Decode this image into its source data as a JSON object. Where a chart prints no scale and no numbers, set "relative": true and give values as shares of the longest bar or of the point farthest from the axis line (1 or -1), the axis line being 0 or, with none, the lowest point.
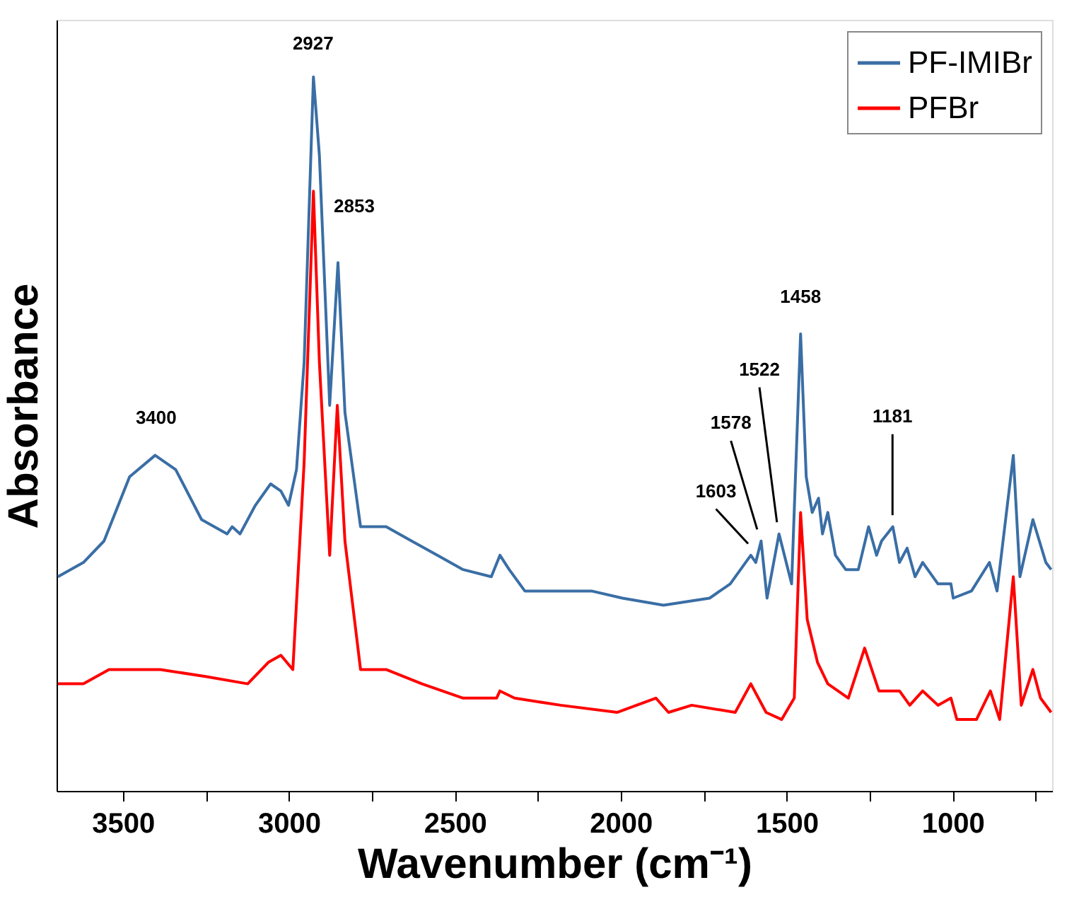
{
  "chart_data": {
    "type": "line",
    "xlabel": "Wavenumber (cm⁻¹)",
    "ylabel": "Absorbance",
    "relative": true,
    "xlim": [
      3700,
      700
    ],
    "xticks": [
      3500,
      {
        "value": 3250,
        "label": null
      },
      3000,
      {
        "value": 2750,
        "label": null
      },
      2500,
      {
        "value": 2250,
        "label": null
      },
      2000,
      {
        "value": 1750,
        "label": null
      },
      1500,
      {
        "value": 1250,
        "label": null
      },
      1000,
      {
        "value": 750,
        "label": null
      }
    ],
    "grid": false,
    "legend": "top right",
    "marker": "none",
    "line_style": "solid",
    "series": [
      {
        "name": "PF-IMIBr",
        "color": "#3a6ea5",
        "x": [
          3696,
          3619,
          3557,
          3480,
          3403,
          3341,
          3263,
          3186,
          3171,
          3147,
          3101,
          3055,
          3024,
          3001,
          2977,
          2954,
          2926,
          2908,
          2877,
          2852,
          2831,
          2784,
          2707,
          2630,
          2552,
          2475,
          2390,
          2364,
          2336,
          2289,
          2242,
          2088,
          1995,
          1871,
          1732,
          1670,
          1608,
          1593,
          1577,
          1559,
          1523,
          1485,
          1458,
          1441,
          1423,
          1404,
          1392,
          1376,
          1353,
          1322,
          1284,
          1253,
          1229,
          1214,
          1180,
          1160,
          1137,
          1113,
          1090,
          1044,
          1005,
          998,
          943,
          889,
          866,
          817,
          797,
          758,
          719,
          703
        ],
        "values": [
          0.3,
          0.32,
          0.35,
          0.44,
          0.47,
          0.45,
          0.38,
          0.36,
          0.37,
          0.36,
          0.4,
          0.43,
          0.42,
          0.4,
          0.45,
          0.6,
          1.0,
          0.89,
          0.54,
          0.74,
          0.53,
          0.37,
          0.37,
          0.35,
          0.33,
          0.31,
          0.3,
          0.33,
          0.31,
          0.28,
          0.28,
          0.28,
          0.27,
          0.26,
          0.27,
          0.29,
          0.33,
          0.32,
          0.35,
          0.27,
          0.36,
          0.29,
          0.64,
          0.44,
          0.39,
          0.41,
          0.36,
          0.39,
          0.33,
          0.31,
          0.31,
          0.37,
          0.33,
          0.35,
          0.37,
          0.32,
          0.34,
          0.3,
          0.32,
          0.29,
          0.29,
          0.27,
          0.28,
          0.32,
          0.28,
          0.47,
          0.3,
          0.38,
          0.32,
          0.31
        ]
      },
      {
        "name": "PFBr",
        "color": "#ff0000",
        "x": [
          3696,
          3619,
          3542,
          3480,
          3387,
          3248,
          3124,
          3062,
          3024,
          2988,
          2954,
          2926,
          2908,
          2877,
          2854,
          2831,
          2784,
          2707,
          2599,
          2475,
          2374,
          2364,
          2320,
          2181,
          2010,
          1894,
          1856,
          1786,
          1655,
          1608,
          1562,
          1515,
          1477,
          1458,
          1438,
          1407,
          1376,
          1314,
          1265,
          1222,
          1160,
          1129,
          1090,
          1044,
          1005,
          987,
          928,
          886,
          858,
          817,
          793,
          758,
          735,
          703
        ],
        "values": [
          0.15,
          0.15,
          0.17,
          0.17,
          0.17,
          0.16,
          0.15,
          0.18,
          0.19,
          0.17,
          0.46,
          0.84,
          0.6,
          0.33,
          0.54,
          0.35,
          0.17,
          0.17,
          0.15,
          0.13,
          0.13,
          0.14,
          0.13,
          0.12,
          0.11,
          0.13,
          0.11,
          0.12,
          0.11,
          0.15,
          0.11,
          0.1,
          0.13,
          0.39,
          0.24,
          0.18,
          0.15,
          0.13,
          0.2,
          0.14,
          0.14,
          0.12,
          0.14,
          0.12,
          0.13,
          0.1,
          0.1,
          0.14,
          0.1,
          0.3,
          0.12,
          0.17,
          0.13,
          0.11
        ]
      }
    ],
    "annotations": [
      {
        "text": "3400",
        "x": 3400,
        "y": 0.47
      },
      {
        "text": "2927",
        "x": 2927,
        "y": 1.0
      },
      {
        "text": "2853",
        "x": 2853,
        "y": 0.74
      },
      {
        "text": "1603",
        "x": 1603,
        "y": 0.33
      },
      {
        "text": "1578",
        "x": 1578,
        "y": 0.35
      },
      {
        "text": "1522",
        "x": 1522,
        "y": 0.36
      },
      {
        "text": "1458",
        "x": 1458,
        "y": 0.64
      },
      {
        "text": "1181",
        "x": 1181,
        "y": 0.37
      }
    ]
  }
}
